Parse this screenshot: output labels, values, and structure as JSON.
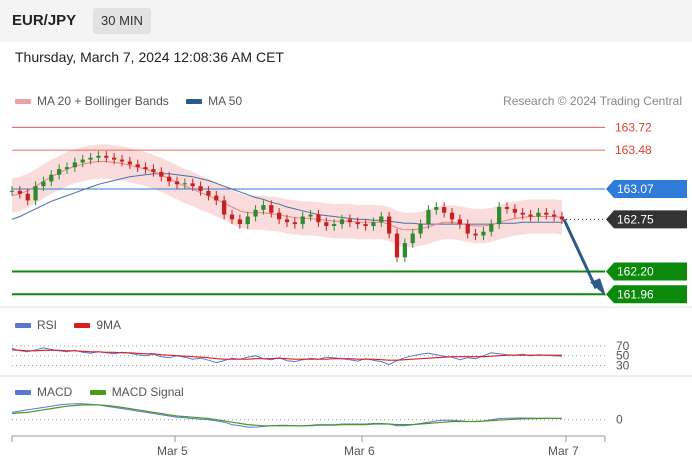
{
  "header": {
    "symbol": "EUR/JPY",
    "interval": "30 MIN",
    "datetime": "Thursday, March 7, 2024 12:08:36 AM CET"
  },
  "main_legend": [
    {
      "label": "MA 20 + Bollinger Bands",
      "color": "#f0a0a0"
    },
    {
      "label": "MA 50",
      "color": "#2d5a8c"
    }
  ],
  "credit": "Research © 2024 Trading Central",
  "rsi_legend": [
    {
      "label": "RSI",
      "color": "#5a78d0"
    },
    {
      "label": "9MA",
      "color": "#d62020"
    }
  ],
  "macd_legend": [
    {
      "label": "MACD",
      "color": "#5a78d0"
    },
    {
      "label": "MACD Signal",
      "color": "#4a9a20"
    }
  ],
  "colors": {
    "resistance": "#e04030",
    "pivot": "#2e7bd8",
    "support": "#0b8a0b",
    "current": "#333333",
    "forecast_arrow": "#2d5a8c"
  },
  "chart_data": [
    {
      "type": "line",
      "name": "price",
      "x_tick_labels": [
        "Mar 5",
        "Mar 6",
        "Mar 7"
      ],
      "ylim": [
        161.9,
        163.85
      ],
      "levels": [
        {
          "label": "163.72",
          "value": 163.72,
          "kind": "resistance"
        },
        {
          "label": "163.48",
          "value": 163.48,
          "kind": "resistance"
        },
        {
          "label": "163.07",
          "value": 163.07,
          "kind": "pivot"
        },
        {
          "label": "162.75",
          "value": 162.75,
          "kind": "current"
        },
        {
          "label": "162.20",
          "value": 162.2,
          "kind": "support"
        },
        {
          "label": "161.96",
          "value": 161.96,
          "kind": "support"
        }
      ],
      "price": [
        163.05,
        163.02,
        162.95,
        163.1,
        163.15,
        163.22,
        163.28,
        163.3,
        163.35,
        163.38,
        163.4,
        163.42,
        163.4,
        163.38,
        163.36,
        163.33,
        163.3,
        163.28,
        163.25,
        163.2,
        163.15,
        163.12,
        163.13,
        163.1,
        163.05,
        163.0,
        162.95,
        162.8,
        162.75,
        162.7,
        162.78,
        162.85,
        162.9,
        162.82,
        162.75,
        162.72,
        162.7,
        162.78,
        162.8,
        162.72,
        162.68,
        162.7,
        162.75,
        162.72,
        162.7,
        162.68,
        162.72,
        162.78,
        162.6,
        162.35,
        162.5,
        162.6,
        162.7,
        162.85,
        162.88,
        162.82,
        162.75,
        162.7,
        162.6,
        162.58,
        162.62,
        162.7,
        162.88,
        162.86,
        162.82,
        162.8,
        162.78,
        162.82,
        162.8,
        162.78,
        162.75
      ],
      "ma20": [
        163.0,
        163.02,
        163.05,
        163.1,
        163.15,
        163.2,
        163.24,
        163.28,
        163.31,
        163.33,
        163.35,
        163.36,
        163.36,
        163.35,
        163.34,
        163.32,
        163.3,
        163.28,
        163.25,
        163.22,
        163.18,
        163.14,
        163.1,
        163.07,
        163.03,
        163.0,
        162.96,
        162.92,
        162.88,
        162.84,
        162.82,
        162.82,
        162.82,
        162.81,
        162.8,
        162.78,
        162.77,
        162.76,
        162.76,
        162.75,
        162.74,
        162.73,
        162.73,
        162.73,
        162.72,
        162.72,
        162.72,
        162.72,
        162.7,
        162.66,
        162.64,
        162.64,
        162.65,
        162.67,
        162.7,
        162.72,
        162.72,
        162.71,
        162.69,
        162.68,
        162.68,
        162.69,
        162.72,
        162.74,
        162.76,
        162.77,
        162.78,
        162.78,
        162.78,
        162.78,
        162.77
      ],
      "ma50": [
        162.75,
        162.78,
        162.82,
        162.86,
        162.9,
        162.94,
        162.97,
        163.0,
        163.03,
        163.06,
        163.09,
        163.12,
        163.14,
        163.16,
        163.18,
        163.2,
        163.21,
        163.22,
        163.23,
        163.23,
        163.23,
        163.22,
        163.21,
        163.2,
        163.18,
        163.16,
        163.13,
        163.1,
        163.07,
        163.04,
        163.01,
        162.98,
        162.96,
        162.93,
        162.91,
        162.88,
        162.86,
        162.84,
        162.82,
        162.8,
        162.79,
        162.78,
        162.77,
        162.76,
        162.75,
        162.75,
        162.74,
        162.74,
        162.73,
        162.72,
        162.71,
        162.71,
        162.7,
        162.7,
        162.7,
        162.7,
        162.7,
        162.7,
        162.7,
        162.7,
        162.7,
        162.7,
        162.71,
        162.71,
        162.71,
        162.72,
        162.72,
        162.72,
        162.72,
        162.72,
        162.72
      ],
      "band_width": 0.18
    },
    {
      "type": "line",
      "name": "rsi",
      "ticks": [
        {
          "label": "70",
          "value": 70
        },
        {
          "label": "50",
          "value": 50
        },
        {
          "label": "30",
          "value": 30
        }
      ],
      "ylim": [
        25,
        78
      ],
      "rsi": [
        65,
        60,
        58,
        62,
        66,
        63,
        60,
        58,
        61,
        57,
        55,
        58,
        56,
        54,
        57,
        55,
        52,
        50,
        53,
        48,
        46,
        50,
        47,
        43,
        45,
        41,
        36,
        40,
        45,
        43,
        47,
        50,
        44,
        42,
        46,
        40,
        38,
        42,
        45,
        43,
        47,
        46,
        44,
        42,
        39,
        44,
        41,
        38,
        32,
        40,
        46,
        50,
        53,
        55,
        52,
        49,
        47,
        42,
        46,
        44,
        50,
        56,
        54,
        52,
        51,
        53,
        50,
        52,
        51,
        50,
        49
      ],
      "ma9": [
        62,
        61,
        60,
        60,
        61,
        61,
        61,
        60,
        60,
        59,
        58,
        58,
        57,
        57,
        56,
        56,
        55,
        54,
        54,
        52,
        51,
        50,
        49,
        48,
        47,
        46,
        44,
        43,
        43,
        43,
        43,
        44,
        44,
        44,
        45,
        44,
        43,
        43,
        43,
        43,
        43,
        44,
        44,
        44,
        43,
        43,
        43,
        42,
        41,
        41,
        42,
        43,
        44,
        45,
        46,
        47,
        48,
        48,
        48,
        48,
        48,
        49,
        50,
        51,
        51,
        51,
        51,
        51,
        51,
        51,
        51
      ]
    },
    {
      "type": "line",
      "name": "macd",
      "ticks": [
        {
          "label": "0",
          "value": 0
        }
      ],
      "ylim": [
        -0.1,
        0.16
      ],
      "macd": [
        0.06,
        0.07,
        0.08,
        0.09,
        0.1,
        0.11,
        0.12,
        0.125,
        0.13,
        0.13,
        0.125,
        0.12,
        0.11,
        0.1,
        0.09,
        0.08,
        0.07,
        0.06,
        0.05,
        0.04,
        0.03,
        0.02,
        0.015,
        0.01,
        0.005,
        0.0,
        -0.01,
        -0.02,
        -0.04,
        -0.05,
        -0.06,
        -0.06,
        -0.055,
        -0.05,
        -0.045,
        -0.045,
        -0.05,
        -0.05,
        -0.045,
        -0.04,
        -0.04,
        -0.04,
        -0.035,
        -0.035,
        -0.035,
        -0.035,
        -0.03,
        -0.03,
        -0.035,
        -0.05,
        -0.05,
        -0.04,
        -0.03,
        -0.02,
        -0.01,
        -0.005,
        -0.005,
        -0.01,
        -0.015,
        -0.015,
        -0.01,
        0.0,
        0.01,
        0.012,
        0.013,
        0.014,
        0.013,
        0.012,
        0.012,
        0.011,
        0.01
      ],
      "signal": [
        0.05,
        0.055,
        0.06,
        0.07,
        0.08,
        0.09,
        0.1,
        0.11,
        0.115,
        0.12,
        0.12,
        0.12,
        0.115,
        0.11,
        0.1,
        0.09,
        0.08,
        0.07,
        0.06,
        0.05,
        0.04,
        0.03,
        0.025,
        0.02,
        0.015,
        0.01,
        0.0,
        -0.01,
        -0.02,
        -0.03,
        -0.04,
        -0.045,
        -0.05,
        -0.05,
        -0.05,
        -0.05,
        -0.05,
        -0.05,
        -0.05,
        -0.045,
        -0.045,
        -0.045,
        -0.04,
        -0.04,
        -0.04,
        -0.04,
        -0.035,
        -0.035,
        -0.035,
        -0.04,
        -0.04,
        -0.04,
        -0.035,
        -0.03,
        -0.025,
        -0.02,
        -0.015,
        -0.015,
        -0.015,
        -0.015,
        -0.012,
        -0.008,
        -0.003,
        0.0,
        0.004,
        0.007,
        0.009,
        0.01,
        0.011,
        0.011,
        0.011
      ]
    }
  ]
}
